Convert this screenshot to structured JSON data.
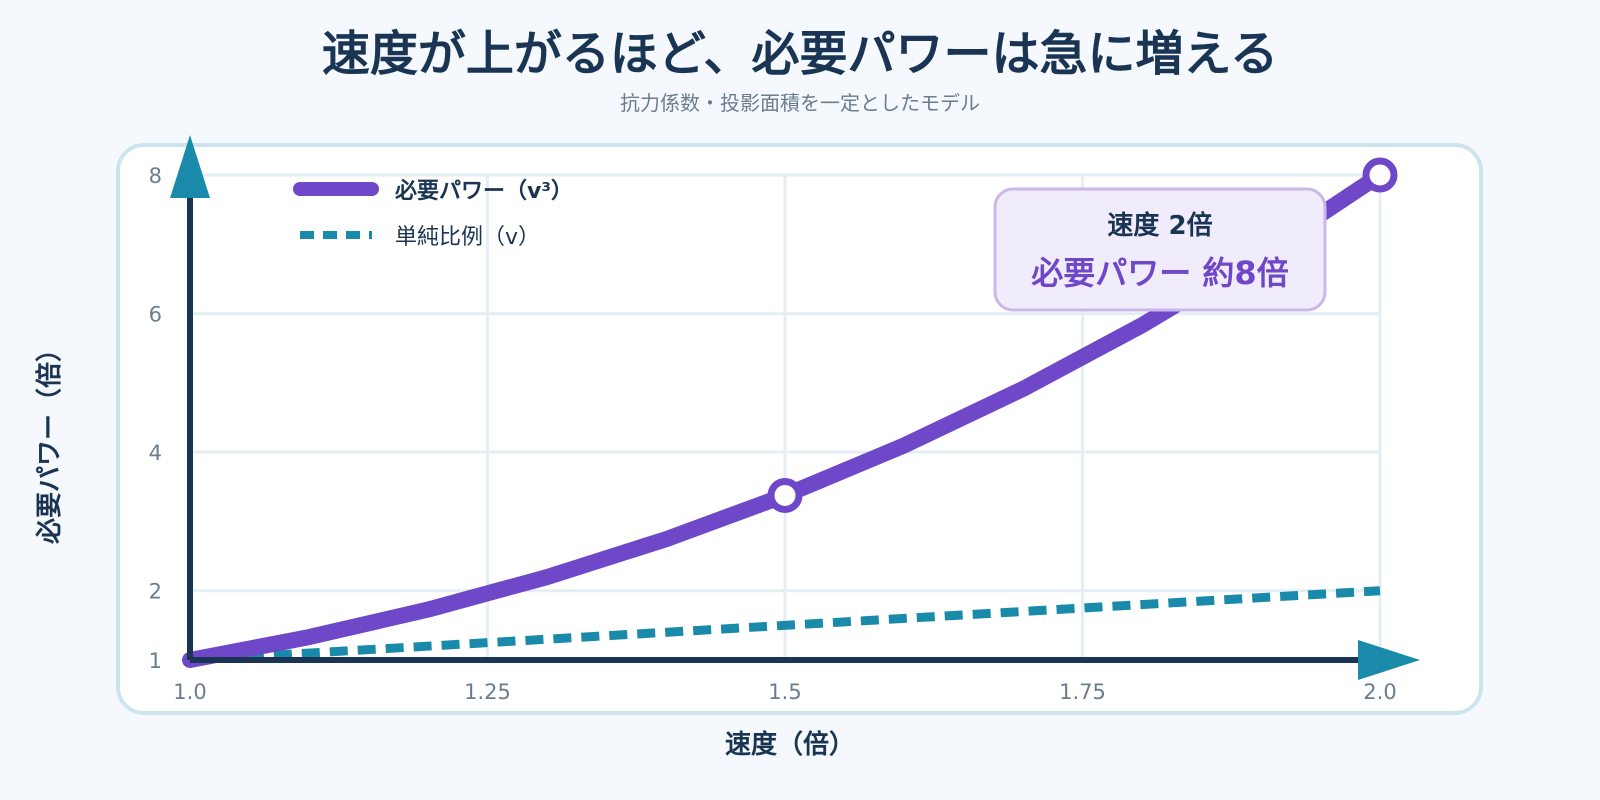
{
  "chart_data": {
    "type": "line",
    "title": "速度が上がるほど、必要パワーは急に増える",
    "subtitle": "抗力係数・投影面積を一定としたモデル",
    "xlabel": "速度（倍）",
    "ylabel": "必要パワー（倍）",
    "xlim": [
      1.0,
      2.0
    ],
    "ylim": [
      1,
      8
    ],
    "x_ticks": [
      "1.0",
      "1.25",
      "1.5",
      "1.75",
      "2.0"
    ],
    "y_ticks": [
      "1",
      "2",
      "4",
      "6",
      "8"
    ],
    "grid": true,
    "legend": "top-left",
    "series": [
      {
        "name": "必要パワー（v³）",
        "style": "solid",
        "color": "#6e48c8",
        "x": [
          1.0,
          1.1,
          1.2,
          1.3,
          1.4,
          1.5,
          1.6,
          1.7,
          1.8,
          1.9,
          2.0
        ],
        "y": [
          1.0,
          1.331,
          1.728,
          2.197,
          2.744,
          3.375,
          4.096,
          4.913,
          5.832,
          6.859,
          8.0
        ],
        "markers_x": [
          1.5,
          2.0
        ]
      },
      {
        "name": "単純比例（v）",
        "style": "dashed",
        "color": "#1a8aab",
        "x": [
          1.0,
          2.0
        ],
        "y": [
          1.0,
          2.0
        ]
      }
    ],
    "annotation": {
      "line1": "速度 2倍",
      "line2": "必要パワー 約8倍"
    }
  },
  "colors": {
    "axis": "#1a3553",
    "arrow": "#1a8aab",
    "grid": "#e3eef5",
    "frame": "#cde4ef",
    "callout_fill": "#f1ecfb",
    "callout_border": "#cbb8ea"
  }
}
